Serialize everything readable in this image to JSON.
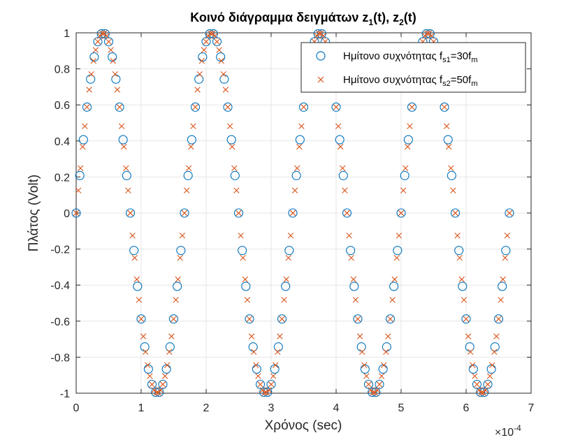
{
  "chart_data": {
    "type": "scatter",
    "title": {
      "text": "Κοινό διάγραμμα δειγμάτων z",
      "sub1": "1",
      "mid": "(t), z",
      "sub2": "2",
      "end": "(t)"
    },
    "xlabel": "Χρόνος (sec)",
    "ylabel": "Πλάτος (Volt)",
    "x_exponent": {
      "base": "×10",
      "power": "-4"
    },
    "xlim": [
      0,
      7
    ],
    "ylim": [
      -1,
      1
    ],
    "xticks": [
      0,
      1,
      2,
      3,
      4,
      5,
      6,
      7
    ],
    "xtick_labels": [
      "0",
      "1",
      "2",
      "3",
      "4",
      "5",
      "6",
      "7"
    ],
    "yticks": [
      -1,
      -0.8,
      -0.6,
      -0.4,
      -0.2,
      0,
      0.2,
      0.4,
      0.6,
      0.8,
      1
    ],
    "ytick_labels": [
      "-1",
      "-0.8",
      "-0.6",
      "-0.4",
      "-0.2",
      "0",
      "0.2",
      "0.4",
      "0.6",
      "0.8",
      "1"
    ],
    "grid": true,
    "legend_position": "top-right",
    "signal": {
      "frequency_hz": 6000,
      "duration_periods": 4,
      "x_units": "1e-4 sec"
    },
    "series": [
      {
        "name": {
          "prefix": "Ημίτονο συχνότητας f",
          "sub": "s1",
          "suffix": "=30f",
          "sub2": "m"
        },
        "marker": "circle",
        "color": "#0072BD",
        "samples_per_period": 30
      },
      {
        "name": {
          "prefix": "Ημίτονο συχνότητας f",
          "sub": "s2",
          "suffix": "=50f",
          "sub2": "m"
        },
        "marker": "x",
        "color": "#D95319",
        "samples_per_period": 50
      }
    ]
  }
}
